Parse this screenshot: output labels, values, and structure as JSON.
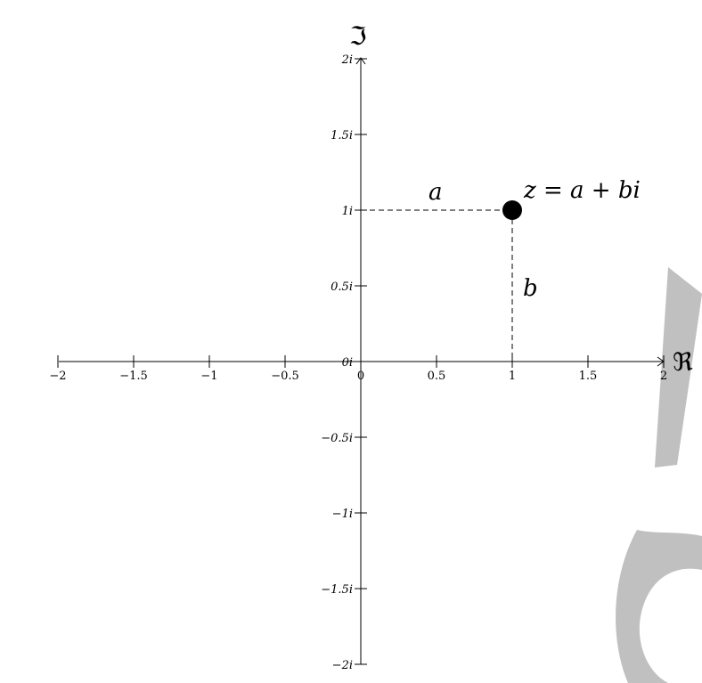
{
  "axes": {
    "real_label": "ℜ",
    "imag_label": "ℑ",
    "x_ticks": [
      "−2",
      "−1.5",
      "−1",
      "−0.5",
      "0",
      "0.5",
      "1",
      "1.5",
      "2"
    ],
    "x_values": [
      -2,
      -1.5,
      -1,
      -0.5,
      0,
      0.5,
      1,
      1.5,
      2
    ],
    "y_ticks": [
      "2i",
      "1.5i",
      "1i",
      "0.5i",
      "0i",
      "−0.5i",
      "−1i",
      "−1.5i",
      "−2i"
    ],
    "y_values": [
      2,
      1.5,
      1,
      0.5,
      0,
      -0.5,
      -1,
      -1.5,
      -2
    ],
    "range": [
      -2,
      2
    ]
  },
  "point": {
    "re": 1,
    "im": 1,
    "label": "z = a + bi",
    "a_label": "a",
    "b_label": "b"
  },
  "watermark_color": "#c0c0c0"
}
